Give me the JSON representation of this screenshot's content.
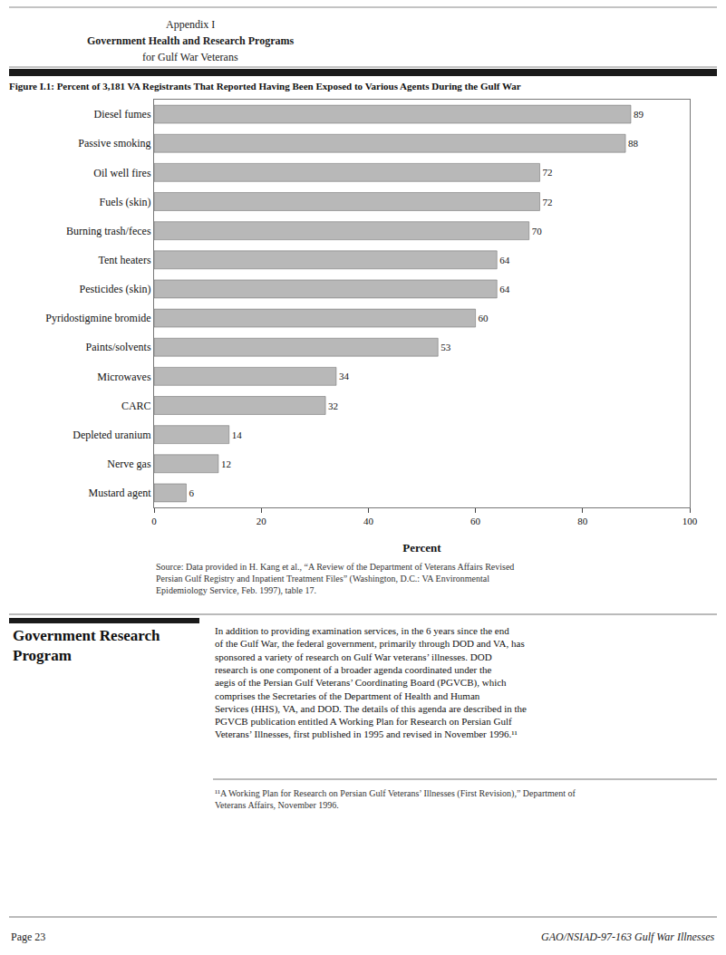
{
  "chart_data": {
    "type": "bar",
    "orientation": "horizontal",
    "title": "Figure I.1: Percent of 3,181 VA Registrants That Reported Having Been Exposed to Various Agents During the Gulf War",
    "xlabel": "Percent",
    "categories": [
      "Diesel fumes",
      "Passive smoking",
      "Oil well fires",
      "Fuels (skin)",
      "Burning trash/feces",
      "Tent heaters",
      "Pesticides (skin)",
      "Pyridostigmine bromide",
      "Paints/solvents",
      "Microwaves",
      "CARC",
      "Depleted uranium",
      "Nerve gas",
      "Mustard agent"
    ],
    "values": [
      89,
      88,
      72,
      72,
      70,
      64,
      64,
      60,
      53,
      34,
      32,
      14,
      12,
      6
    ],
    "color": "#b8b8b8",
    "xlim": [
      0,
      100
    ],
    "xticks": [
      0,
      20,
      40,
      60,
      80,
      100
    ],
    "data_labels": true,
    "grid": false,
    "annotations": [
      "Appendix I",
      "Government Health and Research Programs",
      "for Gulf War Veterans",
      "Source: Data provided in H. Kang et al., “A Review of the Department of Veterans Affairs Revised\nPersian Gulf Registry and Inpatient Treatment Files” (Washington, D.C.: VA Environmental\nEpidemiology Service, Feb. 1997), table 17.",
      "Government Research\nProgram",
      "In addition to providing examination services, in the 6 years since the end\nof the Gulf War, the federal government, primarily through DOD and VA, has\nsponsored a variety of research on Gulf War veterans’ illnesses. DOD\nresearch is one component of a broader agenda coordinated under the\naegis of the Persian Gulf Veterans’ Coordinating Board (PGVCB), which\ncomprises the Secretaries of the Department of Health and Human\nServices (HHS), VA, and DOD. The details of this agenda are described in the\nPGVCB publication entitled A Working Plan for Research on Persian Gulf\nVeterans’ Illnesses, first published in 1995 and revised in November 1996.¹¹",
      "¹¹A Working Plan for Research on Persian Gulf Veterans’ Illnesses (First Revision),” Department of\nVeterans Affairs, November 1996.",
      "Page 23",
      "GAO/NSIAD-97-163 Gulf War Illnesses"
    ]
  }
}
